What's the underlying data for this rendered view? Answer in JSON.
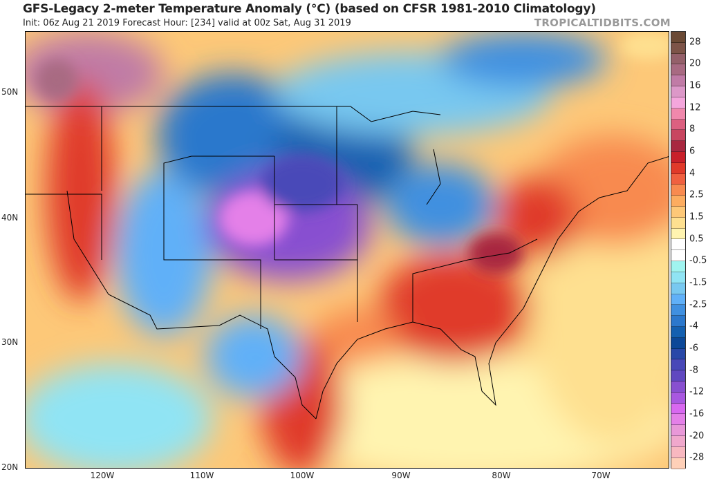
{
  "header": {
    "title": "GFS-Legacy 2-meter Temperature Anomaly (°C) (based on CFSR 1981-2010 Climatology)",
    "subtitle": "Init: 06z Aug 21 2019   Forecast Hour: [234]   valid at 00z Sat, Aug 31 2019",
    "brand": "TROPICALTIDBITS.COM"
  },
  "axes": {
    "lat_labels": [
      "50N",
      "40N",
      "30N",
      "20N"
    ],
    "lon_labels": [
      "120W",
      "110W",
      "100W",
      "90W",
      "80W",
      "70W"
    ]
  },
  "colorbar": {
    "labels": [
      "28",
      "20",
      "16",
      "12",
      "8",
      "6",
      "4",
      "2.5",
      "1.5",
      "0.5",
      "-0.5",
      "-1.5",
      "-2.5",
      "-4",
      "-6",
      "-8",
      "-12",
      "-16",
      "-20",
      "-28"
    ],
    "colors": [
      "#6b4a35",
      "#7d5448",
      "#94606a",
      "#a86a82",
      "#c07ba6",
      "#dc98c8",
      "#f4a6dc",
      "#f088ac",
      "#dc6080",
      "#c84660",
      "#a82840",
      "#c8202a",
      "#e03a2a",
      "#f06040",
      "#f88a50",
      "#fcac60",
      "#fdc878",
      "#fee090",
      "#fff4b0",
      "#ffffff",
      "#ffffff",
      "#a0f4f0",
      "#90e4f4",
      "#78c8f0",
      "#60b0f8",
      "#4090e0",
      "#2c78cc",
      "#1460b0",
      "#0c4898",
      "#2848a8",
      "#4848b8",
      "#6048c0",
      "#8850d0",
      "#a858e0",
      "#d868f0",
      "#e480e8",
      "#e898d8",
      "#f0a8cc",
      "#f8b8c0",
      "#ffd0b8"
    ]
  }
}
